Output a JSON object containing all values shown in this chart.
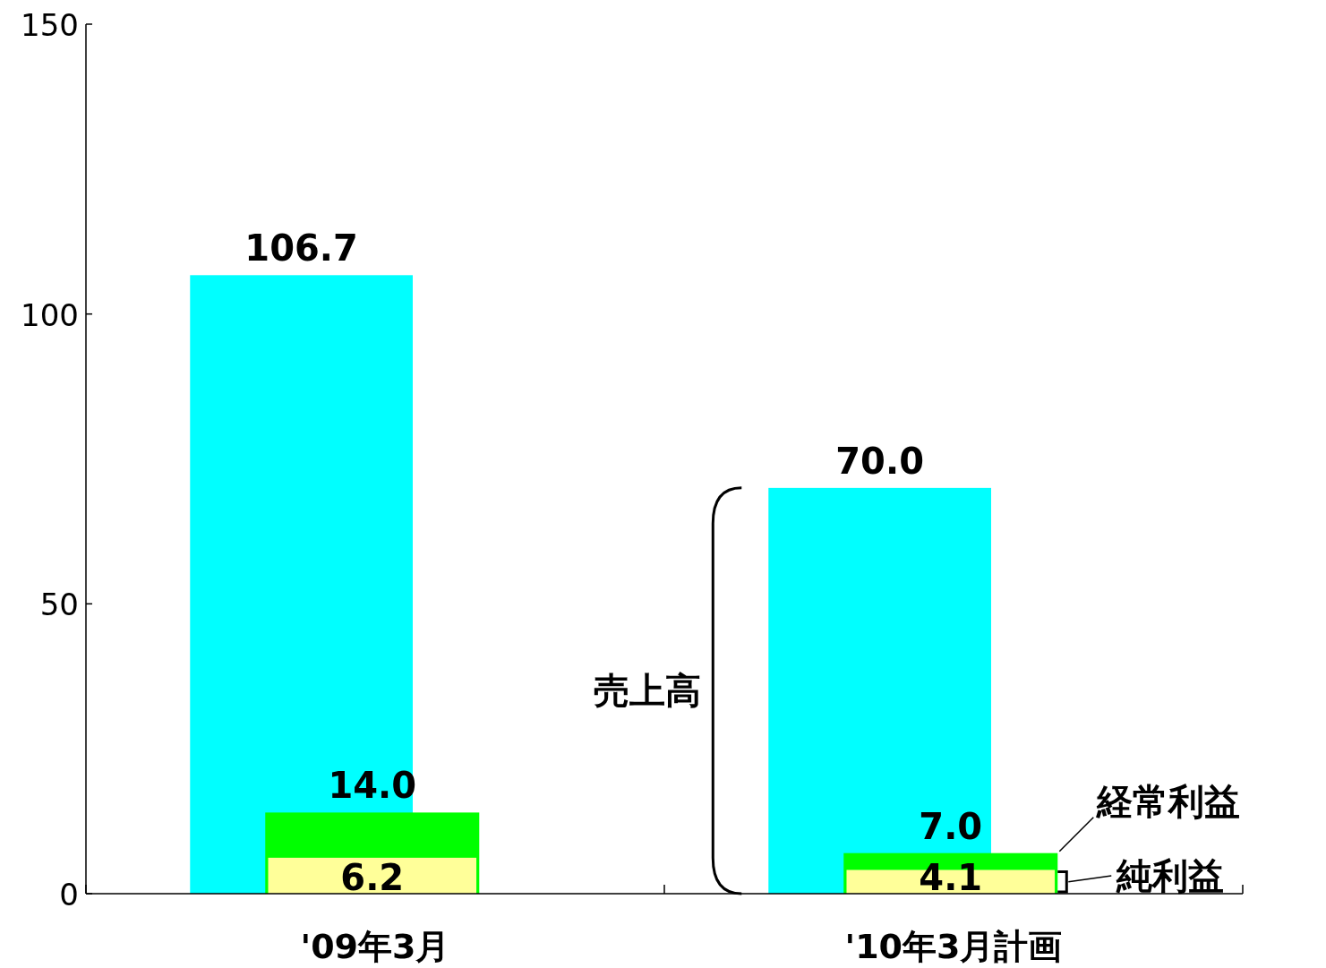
{
  "chart_data": {
    "type": "bar",
    "categories": [
      "'09年3月",
      "'10年3月計画"
    ],
    "series": [
      {
        "name": "売上高",
        "color": "#00ffff",
        "values": [
          106.7,
          70.0
        ],
        "value_labels": [
          "106.7",
          "70.0"
        ]
      },
      {
        "name": "経常利益",
        "color": "#00ff00",
        "values": [
          14.0,
          7.0
        ],
        "value_labels": [
          "14.0",
          "7.0"
        ]
      },
      {
        "name": "純利益",
        "color": "#ffff99",
        "values": [
          6.2,
          4.1
        ],
        "value_labels": [
          "6.2",
          "4.1"
        ]
      }
    ],
    "ylim": [
      0,
      150
    ],
    "yticks": [
      0,
      50,
      100,
      150
    ],
    "grid": false
  }
}
